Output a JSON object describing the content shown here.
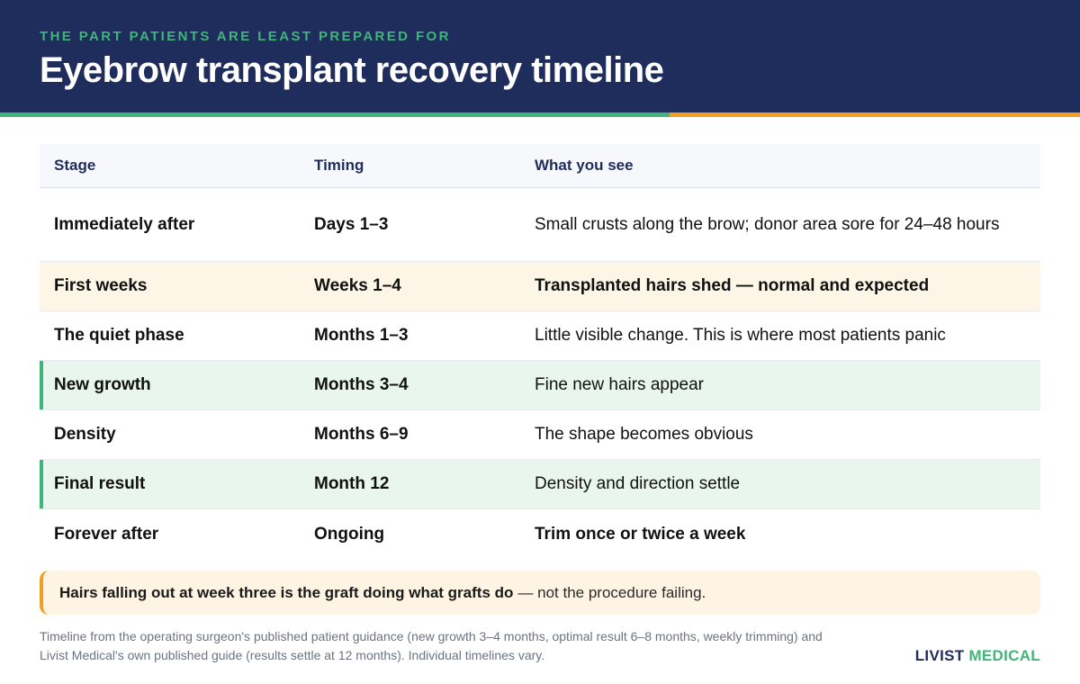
{
  "header": {
    "eyebrow": "THE PART PATIENTS ARE LEAST PREPARED FOR",
    "title": "Eyebrow transplant recovery timeline"
  },
  "table": {
    "columns": [
      "Stage",
      "Timing",
      "What you see"
    ],
    "rows": [
      {
        "stage": "Immediately after",
        "timing": "Days 1–3",
        "see": "Small crusts along the brow; donor area sore for 24–48 hours"
      },
      {
        "stage": "First weeks",
        "timing": "Weeks 1–4",
        "see": "Transplanted hairs shed — normal and expected"
      },
      {
        "stage": "The quiet phase",
        "timing": "Months 1–3",
        "see": "Little visible change. This is where most patients panic"
      },
      {
        "stage": "New growth",
        "timing": "Months 3–4",
        "see": "Fine new hairs appear"
      },
      {
        "stage": "Density",
        "timing": "Months 6–9",
        "see": "The shape becomes obvious"
      },
      {
        "stage": "Final result",
        "timing": "Month 12",
        "see": "Density and direction settle"
      },
      {
        "stage": "Forever after",
        "timing": "Ongoing",
        "see": "Trim once or twice a week"
      }
    ]
  },
  "callout": {
    "strong": "Hairs falling out at week three is the graft doing what grafts do",
    "rest": "— not the procedure failing."
  },
  "footnote": "Timeline from the operating surgeon's published patient guidance (new growth 3–4 months, optimal result 6–8 months, weekly trimming) and Livist Medical's own published guide (results settle at 12 months). Individual timelines vary.",
  "brand": {
    "part1": "LIVIST",
    "part2": "MEDICAL"
  },
  "colors": {
    "navy": "#1f2d5c",
    "green": "#3fb57a",
    "orange": "#f0a020",
    "amber_row": "#fdf6e6",
    "mint_row": "#e9f6ef"
  }
}
